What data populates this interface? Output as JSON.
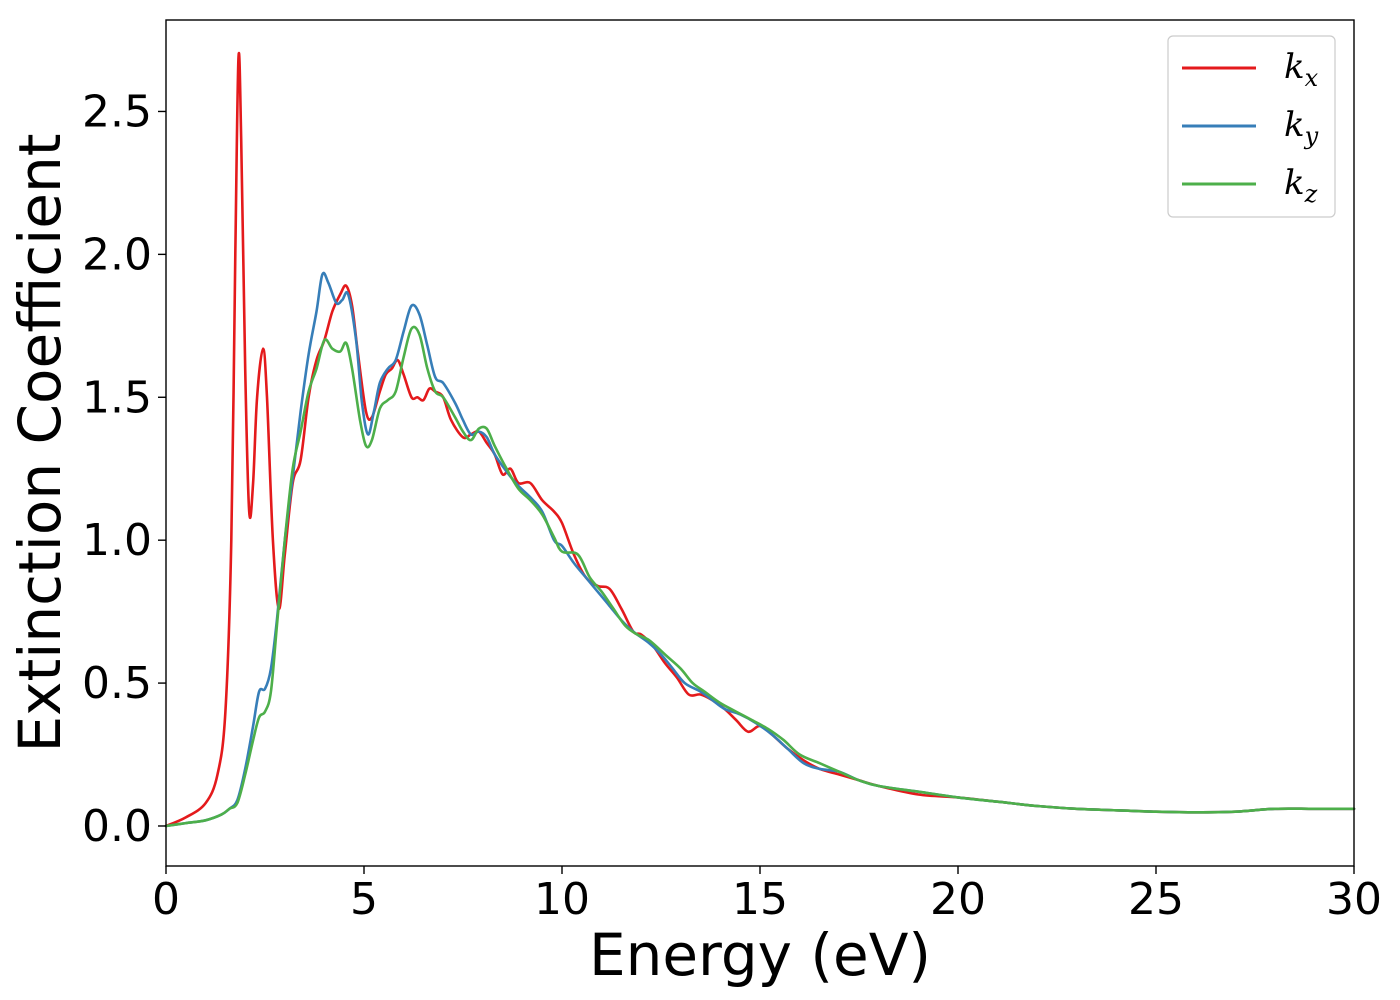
{
  "chart_data": {
    "type": "line",
    "xlabel": "Energy (eV)",
    "ylabel": "Extinction Coefficient",
    "xlim": [
      0,
      30
    ],
    "ylim": [
      -0.14,
      2.82
    ],
    "xticks": [
      0,
      5,
      10,
      15,
      20,
      25,
      30
    ],
    "xtick_labels": [
      "0",
      "5",
      "10",
      "15",
      "20",
      "25",
      "30"
    ],
    "yticks": [
      0.0,
      0.5,
      1.0,
      1.5,
      2.0,
      2.5
    ],
    "ytick_labels": [
      "0.0",
      "0.5",
      "1.0",
      "1.5",
      "2.0",
      "2.5"
    ],
    "grid": false,
    "legend_position": "top-right",
    "series": [
      {
        "name": "k_x",
        "label_base": "k",
        "label_sub": "x",
        "color": "#e41a1c",
        "points": [
          [
            0,
            0.0
          ],
          [
            0.5,
            0.03
          ],
          [
            1.0,
            0.08
          ],
          [
            1.3,
            0.18
          ],
          [
            1.5,
            0.4
          ],
          [
            1.65,
            1.0
          ],
          [
            1.75,
            2.0
          ],
          [
            1.83,
            2.69
          ],
          [
            1.9,
            2.4
          ],
          [
            2.0,
            1.6
          ],
          [
            2.1,
            1.1
          ],
          [
            2.2,
            1.2
          ],
          [
            2.3,
            1.5
          ],
          [
            2.45,
            1.67
          ],
          [
            2.55,
            1.5
          ],
          [
            2.7,
            1.0
          ],
          [
            2.85,
            0.76
          ],
          [
            3.0,
            0.95
          ],
          [
            3.2,
            1.2
          ],
          [
            3.4,
            1.28
          ],
          [
            3.6,
            1.5
          ],
          [
            3.8,
            1.63
          ],
          [
            4.0,
            1.7
          ],
          [
            4.2,
            1.8
          ],
          [
            4.4,
            1.86
          ],
          [
            4.55,
            1.89
          ],
          [
            4.7,
            1.82
          ],
          [
            4.85,
            1.65
          ],
          [
            5.05,
            1.45
          ],
          [
            5.2,
            1.43
          ],
          [
            5.4,
            1.52
          ],
          [
            5.55,
            1.58
          ],
          [
            5.7,
            1.6
          ],
          [
            5.85,
            1.63
          ],
          [
            6.0,
            1.58
          ],
          [
            6.2,
            1.5
          ],
          [
            6.35,
            1.5
          ],
          [
            6.5,
            1.49
          ],
          [
            6.65,
            1.53
          ],
          [
            6.8,
            1.52
          ],
          [
            7.0,
            1.5
          ],
          [
            7.2,
            1.42
          ],
          [
            7.5,
            1.36
          ],
          [
            7.7,
            1.37
          ],
          [
            7.9,
            1.38
          ],
          [
            8.1,
            1.34
          ],
          [
            8.3,
            1.3
          ],
          [
            8.5,
            1.23
          ],
          [
            8.7,
            1.25
          ],
          [
            8.9,
            1.2
          ],
          [
            9.2,
            1.2
          ],
          [
            9.5,
            1.14
          ],
          [
            9.8,
            1.1
          ],
          [
            10.0,
            1.06
          ],
          [
            10.3,
            0.95
          ],
          [
            10.6,
            0.87
          ],
          [
            10.9,
            0.84
          ],
          [
            11.2,
            0.83
          ],
          [
            11.5,
            0.76
          ],
          [
            11.8,
            0.68
          ],
          [
            12.0,
            0.67
          ],
          [
            12.3,
            0.63
          ],
          [
            12.6,
            0.57
          ],
          [
            12.9,
            0.52
          ],
          [
            13.2,
            0.46
          ],
          [
            13.5,
            0.46
          ],
          [
            13.8,
            0.44
          ],
          [
            14.1,
            0.41
          ],
          [
            14.4,
            0.37
          ],
          [
            14.7,
            0.33
          ],
          [
            15.0,
            0.35
          ],
          [
            15.3,
            0.32
          ],
          [
            15.7,
            0.27
          ],
          [
            16.1,
            0.23
          ],
          [
            16.5,
            0.2
          ],
          [
            17.0,
            0.18
          ],
          [
            17.5,
            0.16
          ],
          [
            18.0,
            0.14
          ],
          [
            19.0,
            0.11
          ],
          [
            20.0,
            0.1
          ],
          [
            21.0,
            0.085
          ],
          [
            22.0,
            0.07
          ],
          [
            23.0,
            0.06
          ],
          [
            24.0,
            0.055
          ],
          [
            25.0,
            0.05
          ],
          [
            26.0,
            0.048
          ],
          [
            27.0,
            0.05
          ],
          [
            28.0,
            0.06
          ],
          [
            29.0,
            0.06
          ],
          [
            30.0,
            0.06
          ]
        ]
      },
      {
        "name": "k_y",
        "label_base": "k",
        "label_sub": "y",
        "color": "#377eb8",
        "points": [
          [
            0,
            0.0
          ],
          [
            0.5,
            0.01
          ],
          [
            1.0,
            0.02
          ],
          [
            1.4,
            0.04
          ],
          [
            1.6,
            0.06
          ],
          [
            1.8,
            0.09
          ],
          [
            2.0,
            0.2
          ],
          [
            2.2,
            0.35
          ],
          [
            2.35,
            0.47
          ],
          [
            2.5,
            0.48
          ],
          [
            2.65,
            0.55
          ],
          [
            2.8,
            0.72
          ],
          [
            3.0,
            1.0
          ],
          [
            3.2,
            1.22
          ],
          [
            3.4,
            1.45
          ],
          [
            3.6,
            1.65
          ],
          [
            3.8,
            1.8
          ],
          [
            3.95,
            1.93
          ],
          [
            4.1,
            1.9
          ],
          [
            4.3,
            1.83
          ],
          [
            4.45,
            1.84
          ],
          [
            4.6,
            1.86
          ],
          [
            4.8,
            1.7
          ],
          [
            4.95,
            1.48
          ],
          [
            5.1,
            1.37
          ],
          [
            5.25,
            1.45
          ],
          [
            5.4,
            1.55
          ],
          [
            5.6,
            1.6
          ],
          [
            5.8,
            1.63
          ],
          [
            6.0,
            1.73
          ],
          [
            6.2,
            1.82
          ],
          [
            6.4,
            1.79
          ],
          [
            6.6,
            1.68
          ],
          [
            6.8,
            1.57
          ],
          [
            7.0,
            1.55
          ],
          [
            7.3,
            1.48
          ],
          [
            7.5,
            1.42
          ],
          [
            7.7,
            1.37
          ],
          [
            7.9,
            1.38
          ],
          [
            8.1,
            1.36
          ],
          [
            8.3,
            1.3
          ],
          [
            8.6,
            1.24
          ],
          [
            8.9,
            1.19
          ],
          [
            9.2,
            1.15
          ],
          [
            9.5,
            1.1
          ],
          [
            9.8,
            1.0
          ],
          [
            10.0,
            0.98
          ],
          [
            10.3,
            0.92
          ],
          [
            10.6,
            0.87
          ],
          [
            10.9,
            0.82
          ],
          [
            11.2,
            0.77
          ],
          [
            11.5,
            0.72
          ],
          [
            11.8,
            0.68
          ],
          [
            12.2,
            0.64
          ],
          [
            12.5,
            0.6
          ],
          [
            12.8,
            0.55
          ],
          [
            13.1,
            0.5
          ],
          [
            13.5,
            0.47
          ],
          [
            13.8,
            0.44
          ],
          [
            14.1,
            0.41
          ],
          [
            14.5,
            0.39
          ],
          [
            14.9,
            0.36
          ],
          [
            15.3,
            0.32
          ],
          [
            15.7,
            0.27
          ],
          [
            16.1,
            0.22
          ],
          [
            16.5,
            0.2
          ],
          [
            17.0,
            0.19
          ],
          [
            17.5,
            0.16
          ],
          [
            18.0,
            0.14
          ],
          [
            19.0,
            0.12
          ],
          [
            20.0,
            0.1
          ],
          [
            21.0,
            0.085
          ],
          [
            22.0,
            0.07
          ],
          [
            23.0,
            0.06
          ],
          [
            24.0,
            0.055
          ],
          [
            25.0,
            0.05
          ],
          [
            26.0,
            0.048
          ],
          [
            27.0,
            0.05
          ],
          [
            28.0,
            0.06
          ],
          [
            29.0,
            0.06
          ],
          [
            30.0,
            0.06
          ]
        ]
      },
      {
        "name": "k_z",
        "label_base": "k",
        "label_sub": "z",
        "color": "#4daf4a",
        "points": [
          [
            0,
            0.0
          ],
          [
            0.5,
            0.01
          ],
          [
            1.0,
            0.02
          ],
          [
            1.4,
            0.04
          ],
          [
            1.6,
            0.06
          ],
          [
            1.8,
            0.08
          ],
          [
            2.0,
            0.18
          ],
          [
            2.2,
            0.3
          ],
          [
            2.35,
            0.38
          ],
          [
            2.5,
            0.4
          ],
          [
            2.65,
            0.47
          ],
          [
            2.8,
            0.7
          ],
          [
            3.0,
            1.0
          ],
          [
            3.2,
            1.25
          ],
          [
            3.4,
            1.38
          ],
          [
            3.6,
            1.52
          ],
          [
            3.8,
            1.6
          ],
          [
            4.0,
            1.7
          ],
          [
            4.2,
            1.67
          ],
          [
            4.4,
            1.66
          ],
          [
            4.55,
            1.69
          ],
          [
            4.7,
            1.6
          ],
          [
            4.9,
            1.42
          ],
          [
            5.05,
            1.33
          ],
          [
            5.2,
            1.35
          ],
          [
            5.4,
            1.46
          ],
          [
            5.6,
            1.49
          ],
          [
            5.8,
            1.52
          ],
          [
            6.0,
            1.64
          ],
          [
            6.2,
            1.74
          ],
          [
            6.4,
            1.72
          ],
          [
            6.6,
            1.6
          ],
          [
            6.8,
            1.52
          ],
          [
            7.0,
            1.5
          ],
          [
            7.3,
            1.43
          ],
          [
            7.5,
            1.38
          ],
          [
            7.7,
            1.35
          ],
          [
            7.9,
            1.39
          ],
          [
            8.1,
            1.39
          ],
          [
            8.3,
            1.33
          ],
          [
            8.6,
            1.25
          ],
          [
            8.9,
            1.18
          ],
          [
            9.2,
            1.14
          ],
          [
            9.5,
            1.09
          ],
          [
            9.8,
            1.01
          ],
          [
            10.0,
            0.96
          ],
          [
            10.4,
            0.95
          ],
          [
            10.7,
            0.87
          ],
          [
            11.0,
            0.82
          ],
          [
            11.3,
            0.76
          ],
          [
            11.6,
            0.7
          ],
          [
            11.9,
            0.67
          ],
          [
            12.2,
            0.65
          ],
          [
            12.6,
            0.6
          ],
          [
            13.0,
            0.55
          ],
          [
            13.3,
            0.5
          ],
          [
            13.6,
            0.47
          ],
          [
            14.0,
            0.43
          ],
          [
            14.4,
            0.4
          ],
          [
            14.8,
            0.37
          ],
          [
            15.2,
            0.34
          ],
          [
            15.6,
            0.3
          ],
          [
            16.0,
            0.25
          ],
          [
            16.5,
            0.22
          ],
          [
            17.0,
            0.19
          ],
          [
            17.5,
            0.16
          ],
          [
            18.0,
            0.14
          ],
          [
            19.0,
            0.12
          ],
          [
            20.0,
            0.1
          ],
          [
            21.0,
            0.085
          ],
          [
            22.0,
            0.07
          ],
          [
            23.0,
            0.06
          ],
          [
            24.0,
            0.055
          ],
          [
            25.0,
            0.05
          ],
          [
            26.0,
            0.048
          ],
          [
            27.0,
            0.05
          ],
          [
            28.0,
            0.06
          ],
          [
            29.0,
            0.06
          ],
          [
            30.0,
            0.06
          ]
        ]
      }
    ]
  }
}
